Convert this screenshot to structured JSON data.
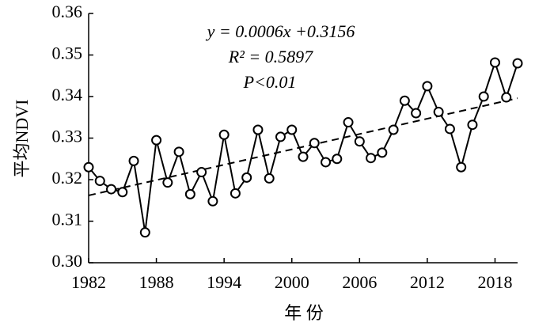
{
  "chart_data": {
    "type": "line",
    "x_label": "年 份",
    "y_label": "平均NDVI",
    "annotations": [
      "y = 0.0006x +0.3156",
      "R² = 0.5897",
      "P<0.01"
    ],
    "x": [
      1982,
      1983,
      1984,
      1985,
      1986,
      1987,
      1988,
      1989,
      1990,
      1991,
      1992,
      1993,
      1994,
      1995,
      1996,
      1997,
      1998,
      1999,
      2000,
      2001,
      2002,
      2003,
      2004,
      2005,
      2006,
      2007,
      2008,
      2009,
      2010,
      2011,
      2012,
      2013,
      2014,
      2015,
      2016,
      2017,
      2018,
      2019,
      2020
    ],
    "series": [
      {
        "name": "NDVI",
        "color": "#000000",
        "values": [
          0.323,
          0.3197,
          0.3177,
          0.317,
          0.3245,
          0.3073,
          0.3295,
          0.3193,
          0.3267,
          0.3165,
          0.3218,
          0.3148,
          0.3308,
          0.3167,
          0.3205,
          0.332,
          0.3203,
          0.3303,
          0.332,
          0.3255,
          0.3288,
          0.3242,
          0.325,
          0.3338,
          0.3292,
          0.3252,
          0.3265,
          0.332,
          0.339,
          0.336,
          0.3425,
          0.3363,
          0.3322,
          0.323,
          0.3332,
          0.34,
          0.3482,
          0.3398,
          0.348
        ]
      }
    ],
    "trend_line": {
      "x": [
        1982,
        2020
      ],
      "values": [
        0.3162,
        0.3396
      ]
    },
    "xlim": [
      1982,
      2020
    ],
    "xticks": [
      1982,
      1988,
      1994,
      2000,
      2006,
      2012,
      2018
    ],
    "ylim": [
      0.3,
      0.36
    ],
    "yticks": [
      {
        "value": 0.3,
        "label": "0.30"
      },
      0.31,
      0.32,
      0.33,
      0.34,
      0.35,
      0.36
    ]
  }
}
